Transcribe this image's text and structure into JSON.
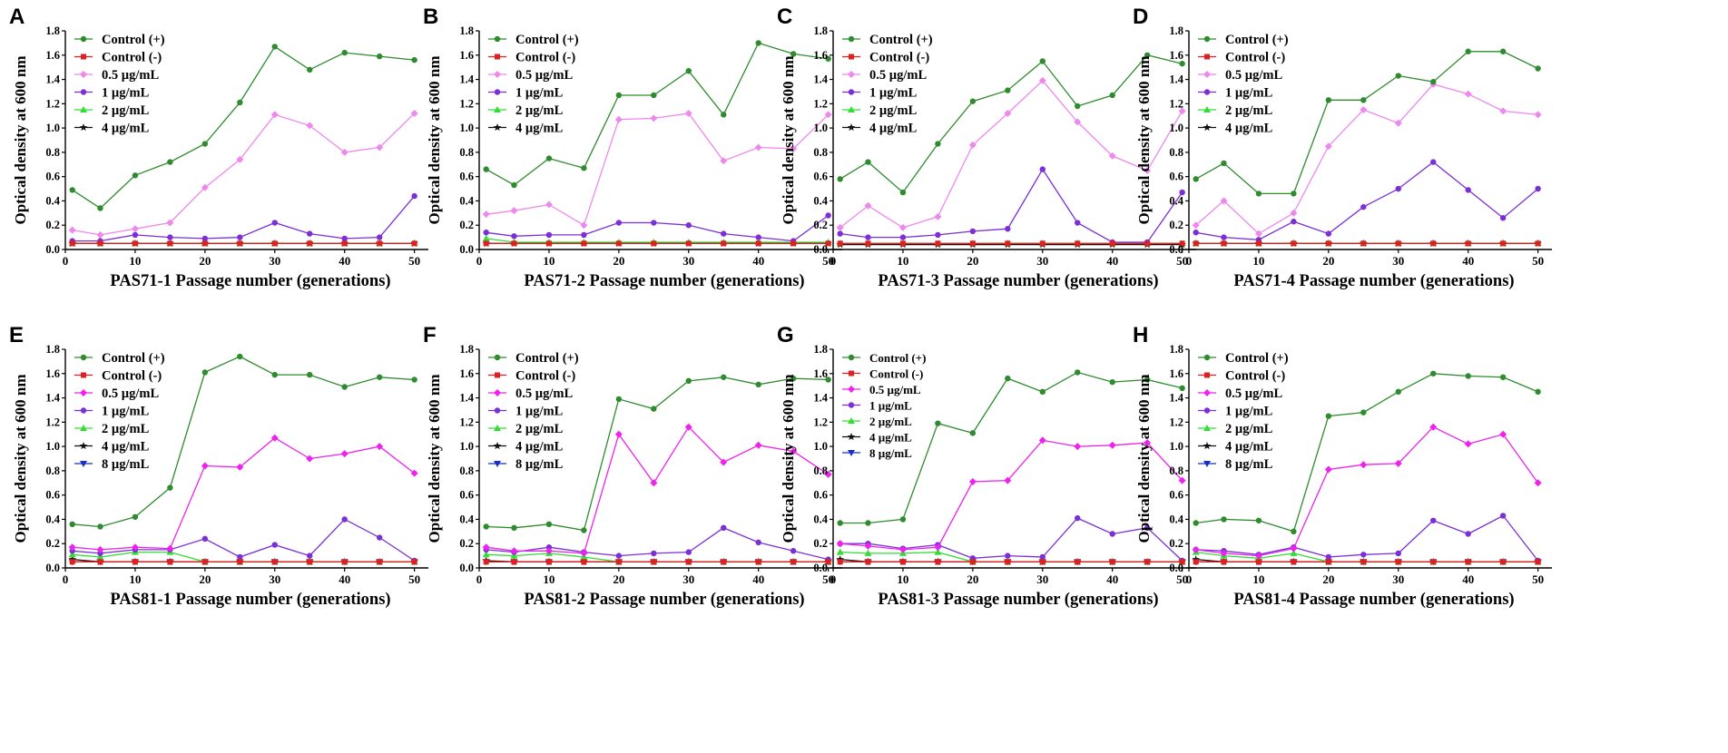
{
  "figure": {
    "x_values": [
      1,
      5,
      10,
      15,
      20,
      25,
      30,
      35,
      40,
      45,
      50
    ],
    "y_axis_label": "Optical density at 600 nm",
    "x_ticks": [
      0,
      10,
      20,
      30,
      40,
      50
    ],
    "y_ticks": [
      "0.0",
      "0.2",
      "0.4",
      "0.6",
      "0.8",
      "1.0",
      "1.2",
      "1.4",
      "1.6",
      "1.8"
    ],
    "series_colors": {
      "Control (+)": "#2e8b2e",
      "Control (-)": "#e02020",
      "0.5 µg/mL": "#ee88ee",
      "1 µg/mL": "#7b2fd6",
      "2 µg/mL": "#33dd33",
      "4 µg/mL": "#111111",
      "8 µg/mL": "#1a2fbf"
    },
    "series_colors_row2_half": "#ee22ee"
  },
  "chart_data": [
    {
      "type": "line",
      "panel": "A",
      "xlabel": "PAS71-1 Passage number (generations)",
      "ylabel": "Optical density at 600 nm",
      "xlim": [
        0,
        52
      ],
      "ylim": [
        0,
        1.8
      ],
      "x": [
        1,
        5,
        10,
        15,
        20,
        25,
        30,
        35,
        40,
        45,
        50
      ],
      "series": [
        {
          "name": "Control (+)",
          "values": [
            0.49,
            0.34,
            0.61,
            0.72,
            0.87,
            1.21,
            1.67,
            1.48,
            1.62,
            1.59,
            1.56
          ]
        },
        {
          "name": "Control (-)",
          "values": [
            0.05,
            0.05,
            0.05,
            0.05,
            0.05,
            0.05,
            0.05,
            0.05,
            0.05,
            0.05,
            0.05
          ]
        },
        {
          "name": "0.5 µg/mL",
          "values": [
            0.16,
            0.12,
            0.17,
            0.22,
            0.51,
            0.74,
            1.11,
            1.02,
            0.8,
            0.84,
            1.12
          ]
        },
        {
          "name": "1 µg/mL",
          "values": [
            0.07,
            0.07,
            0.12,
            0.1,
            0.09,
            0.1,
            0.22,
            0.13,
            0.09,
            0.1,
            0.44
          ]
        },
        {
          "name": "2 µg/mL",
          "values": [
            0.05,
            0.05,
            0.05,
            0.05,
            0.05,
            0.05,
            0.05,
            0.05,
            0.05,
            0.05,
            0.05
          ]
        },
        {
          "name": "4 µg/mL",
          "values": [
            0.05,
            0.05,
            0.05,
            0.05,
            0.05,
            0.05,
            0.05,
            0.05,
            0.05,
            0.05,
            0.05
          ]
        }
      ]
    },
    {
      "type": "line",
      "panel": "B",
      "xlabel": "PAS71-2 Passage number (generations)",
      "ylabel": "Optical density at 600 nm",
      "xlim": [
        0,
        52
      ],
      "ylim": [
        0,
        1.8
      ],
      "x": [
        1,
        5,
        10,
        15,
        20,
        25,
        30,
        35,
        40,
        45,
        50
      ],
      "series": [
        {
          "name": "Control (+)",
          "values": [
            0.66,
            0.53,
            0.75,
            0.67,
            1.27,
            1.27,
            1.47,
            1.11,
            1.7,
            1.61,
            1.57
          ]
        },
        {
          "name": "Control (-)",
          "values": [
            0.05,
            0.05,
            0.05,
            0.05,
            0.05,
            0.05,
            0.05,
            0.05,
            0.05,
            0.05,
            0.05
          ]
        },
        {
          "name": "0.5 µg/mL",
          "values": [
            0.29,
            0.32,
            0.37,
            0.2,
            1.07,
            1.08,
            1.12,
            0.73,
            0.84,
            0.83,
            1.11
          ]
        },
        {
          "name": "1 µg/mL",
          "values": [
            0.14,
            0.11,
            0.12,
            0.12,
            0.22,
            0.22,
            0.2,
            0.13,
            0.1,
            0.07,
            0.28
          ]
        },
        {
          "name": "2 µg/mL",
          "values": [
            0.09,
            0.06,
            0.06,
            0.06,
            0.06,
            0.06,
            0.06,
            0.06,
            0.06,
            0.06,
            0.06
          ]
        },
        {
          "name": "4 µg/mL",
          "values": [
            0.05,
            0.05,
            0.05,
            0.05,
            0.05,
            0.05,
            0.05,
            0.05,
            0.05,
            0.05,
            0.05
          ]
        }
      ]
    },
    {
      "type": "line",
      "panel": "C",
      "xlabel": "PAS71-3 Passage number (generations)",
      "ylabel": "Optical density at 600 nm",
      "xlim": [
        0,
        52
      ],
      "ylim": [
        0,
        1.8
      ],
      "x": [
        1,
        5,
        10,
        15,
        20,
        25,
        30,
        35,
        40,
        45,
        50
      ],
      "series": [
        {
          "name": "Control (+)",
          "values": [
            0.58,
            0.72,
            0.47,
            0.87,
            1.22,
            1.31,
            1.55,
            1.18,
            1.27,
            1.6,
            1.53
          ]
        },
        {
          "name": "Control (-)",
          "values": [
            0.05,
            0.05,
            0.05,
            0.05,
            0.05,
            0.05,
            0.05,
            0.05,
            0.05,
            0.05,
            0.05
          ]
        },
        {
          "name": "0.5 µg/mL",
          "values": [
            0.18,
            0.36,
            0.18,
            0.27,
            0.86,
            1.12,
            1.39,
            1.05,
            0.77,
            0.65,
            1.14
          ]
        },
        {
          "name": "1 µg/mL",
          "values": [
            0.13,
            0.1,
            0.1,
            0.12,
            0.15,
            0.17,
            0.66,
            0.22,
            0.06,
            0.06,
            0.47
          ]
        },
        {
          "name": "2 µg/mL",
          "values": [
            0.05,
            0.05,
            0.05,
            0.05,
            0.05,
            0.05,
            0.05,
            0.05,
            0.05,
            0.05,
            0.05
          ]
        },
        {
          "name": "4 µg/mL",
          "values": [
            0.04,
            0.04,
            0.04,
            0.04,
            0.04,
            0.04,
            0.04,
            0.04,
            0.04,
            0.04,
            0.04
          ]
        }
      ]
    },
    {
      "type": "line",
      "panel": "D",
      "xlabel": "PAS71-4 Passage number (generations)",
      "ylabel": "Optical density at 600 nm",
      "xlim": [
        0,
        52
      ],
      "ylim": [
        0,
        1.8
      ],
      "x": [
        1,
        5,
        10,
        15,
        20,
        25,
        30,
        35,
        40,
        45,
        50
      ],
      "series": [
        {
          "name": "Control (+)",
          "values": [
            0.58,
            0.71,
            0.46,
            0.46,
            1.23,
            1.23,
            1.43,
            1.38,
            1.63,
            1.63,
            1.49
          ]
        },
        {
          "name": "Control (-)",
          "values": [
            0.05,
            0.05,
            0.05,
            0.05,
            0.05,
            0.05,
            0.05,
            0.05,
            0.05,
            0.05,
            0.05
          ]
        },
        {
          "name": "0.5 µg/mL",
          "values": [
            0.2,
            0.4,
            0.13,
            0.3,
            0.85,
            1.15,
            1.04,
            1.36,
            1.28,
            1.14,
            1.11
          ]
        },
        {
          "name": "1 µg/mL",
          "values": [
            0.14,
            0.1,
            0.08,
            0.23,
            0.13,
            0.35,
            0.5,
            0.72,
            0.49,
            0.26,
            0.5
          ]
        },
        {
          "name": "2 µg/mL",
          "values": [
            0.05,
            0.05,
            0.05,
            0.05,
            0.05,
            0.05,
            0.05,
            0.05,
            0.05,
            0.05,
            0.05
          ]
        },
        {
          "name": "4 µg/mL",
          "values": [
            0.05,
            0.05,
            0.05,
            0.05,
            0.05,
            0.05,
            0.05,
            0.05,
            0.05,
            0.05,
            0.05
          ]
        }
      ]
    },
    {
      "type": "line",
      "panel": "E",
      "xlabel": "PAS81-1 Passage number (generations)",
      "ylabel": "Optical density at 600 nm",
      "xlim": [
        0,
        52
      ],
      "ylim": [
        0,
        1.8
      ],
      "x": [
        1,
        5,
        10,
        15,
        20,
        25,
        30,
        35,
        40,
        45,
        50
      ],
      "series": [
        {
          "name": "Control (+)",
          "values": [
            0.36,
            0.34,
            0.42,
            0.66,
            1.61,
            1.74,
            1.59,
            1.59,
            1.49,
            1.57,
            1.55
          ]
        },
        {
          "name": "Control (-)",
          "values": [
            0.05,
            0.05,
            0.05,
            0.05,
            0.05,
            0.05,
            0.05,
            0.05,
            0.05,
            0.05,
            0.05
          ]
        },
        {
          "name": "0.5 µg/mL",
          "values": [
            0.17,
            0.15,
            0.17,
            0.16,
            0.84,
            0.83,
            1.07,
            0.9,
            0.94,
            1.0,
            0.78
          ]
        },
        {
          "name": "1 µg/mL",
          "values": [
            0.14,
            0.12,
            0.15,
            0.15,
            0.24,
            0.09,
            0.19,
            0.1,
            0.4,
            0.25,
            0.06
          ]
        },
        {
          "name": "2 µg/mL",
          "values": [
            0.11,
            0.09,
            0.13,
            0.13,
            0.05,
            0.05,
            0.05,
            0.05,
            0.05,
            0.05,
            0.05
          ]
        },
        {
          "name": "4 µg/mL",
          "values": [
            0.07,
            0.05,
            0.05,
            0.05,
            0.05,
            0.05,
            0.05,
            0.05,
            0.05,
            0.05,
            0.05
          ]
        },
        {
          "name": "8 µg/mL",
          "values": [
            0.05,
            0.05,
            0.05,
            0.05,
            0.05,
            0.05,
            0.05,
            0.05,
            0.05,
            0.05,
            0.05
          ]
        }
      ]
    },
    {
      "type": "line",
      "panel": "F",
      "xlabel": "PAS81-2 Passage number (generations)",
      "ylabel": "Optical density at 600 nm",
      "xlim": [
        0,
        52
      ],
      "ylim": [
        0,
        1.8
      ],
      "x": [
        1,
        5,
        10,
        15,
        20,
        25,
        30,
        35,
        40,
        45,
        50
      ],
      "series": [
        {
          "name": "Control (+)",
          "values": [
            0.34,
            0.33,
            0.36,
            0.31,
            1.39,
            1.31,
            1.54,
            1.57,
            1.51,
            1.56,
            1.55
          ]
        },
        {
          "name": "Control (-)",
          "values": [
            0.05,
            0.05,
            0.05,
            0.05,
            0.05,
            0.05,
            0.05,
            0.05,
            0.05,
            0.05,
            0.05
          ]
        },
        {
          "name": "0.5 µg/mL",
          "values": [
            0.17,
            0.14,
            0.14,
            0.12,
            1.1,
            0.7,
            1.16,
            0.87,
            1.01,
            0.96,
            0.77
          ]
        },
        {
          "name": "1 µg/mL",
          "values": [
            0.15,
            0.13,
            0.17,
            0.13,
            0.1,
            0.12,
            0.13,
            0.33,
            0.21,
            0.14,
            0.07
          ]
        },
        {
          "name": "2 µg/mL",
          "values": [
            0.11,
            0.1,
            0.12,
            0.09,
            0.05,
            0.05,
            0.05,
            0.05,
            0.05,
            0.05,
            0.05
          ]
        },
        {
          "name": "4 µg/mL",
          "values": [
            0.06,
            0.05,
            0.05,
            0.05,
            0.05,
            0.05,
            0.05,
            0.05,
            0.05,
            0.05,
            0.05
          ]
        },
        {
          "name": "8 µg/mL",
          "values": [
            0.05,
            0.05,
            0.05,
            0.05,
            0.05,
            0.05,
            0.05,
            0.05,
            0.05,
            0.05,
            0.05
          ]
        }
      ]
    },
    {
      "type": "line",
      "panel": "G",
      "xlabel": "PAS81-3 Passage number (generations)",
      "ylabel": "Optical density at 600 nm",
      "xlim": [
        0,
        52
      ],
      "ylim": [
        0,
        1.8
      ],
      "x": [
        1,
        5,
        10,
        15,
        20,
        25,
        30,
        35,
        40,
        45,
        50
      ],
      "series": [
        {
          "name": "Control (+)",
          "values": [
            0.37,
            0.37,
            0.4,
            1.19,
            1.11,
            1.56,
            1.45,
            1.61,
            1.53,
            1.55,
            1.48
          ]
        },
        {
          "name": "Control (-)",
          "values": [
            0.05,
            0.05,
            0.05,
            0.05,
            0.05,
            0.05,
            0.05,
            0.05,
            0.05,
            0.05,
            0.05
          ]
        },
        {
          "name": "0.5 µg/mL",
          "values": [
            0.2,
            0.18,
            0.15,
            0.17,
            0.71,
            0.72,
            1.05,
            1.0,
            1.01,
            1.03,
            0.72
          ]
        },
        {
          "name": "1 µg/mL",
          "values": [
            0.2,
            0.2,
            0.16,
            0.19,
            0.08,
            0.1,
            0.09,
            0.41,
            0.28,
            0.33,
            0.06
          ]
        },
        {
          "name": "2 µg/mL",
          "values": [
            0.13,
            0.12,
            0.12,
            0.13,
            0.05,
            0.05,
            0.05,
            0.05,
            0.05,
            0.05,
            0.05
          ]
        },
        {
          "name": "4 µg/mL",
          "values": [
            0.07,
            0.05,
            0.05,
            0.05,
            0.05,
            0.05,
            0.05,
            0.05,
            0.05,
            0.05,
            0.05
          ]
        },
        {
          "name": "8 µg/mL",
          "values": [
            0.05,
            0.05,
            0.05,
            0.05,
            0.05,
            0.05,
            0.05,
            0.05,
            0.05,
            0.05,
            0.05
          ]
        }
      ]
    },
    {
      "type": "line",
      "panel": "H",
      "xlabel": "PAS81-4 Passage number (generations)",
      "ylabel": "Optical density at 600 nm",
      "xlim": [
        0,
        52
      ],
      "ylim": [
        0,
        1.8
      ],
      "x": [
        1,
        5,
        10,
        15,
        20,
        25,
        30,
        35,
        40,
        45,
        50
      ],
      "series": [
        {
          "name": "Control (+)",
          "values": [
            0.37,
            0.4,
            0.39,
            0.3,
            1.25,
            1.28,
            1.45,
            1.6,
            1.58,
            1.57,
            1.45
          ]
        },
        {
          "name": "Control (-)",
          "values": [
            0.05,
            0.05,
            0.05,
            0.05,
            0.05,
            0.05,
            0.05,
            0.05,
            0.05,
            0.05,
            0.05
          ]
        },
        {
          "name": "0.5 µg/mL",
          "values": [
            0.15,
            0.12,
            0.1,
            0.16,
            0.81,
            0.85,
            0.86,
            1.16,
            1.02,
            1.1,
            0.7
          ]
        },
        {
          "name": "1 µg/mL",
          "values": [
            0.15,
            0.14,
            0.11,
            0.17,
            0.09,
            0.11,
            0.12,
            0.39,
            0.28,
            0.43,
            0.06
          ]
        },
        {
          "name": "2 µg/mL",
          "values": [
            0.13,
            0.1,
            0.08,
            0.12,
            0.05,
            0.05,
            0.05,
            0.05,
            0.05,
            0.05,
            0.05
          ]
        },
        {
          "name": "4 µg/mL",
          "values": [
            0.07,
            0.05,
            0.05,
            0.05,
            0.05,
            0.05,
            0.05,
            0.05,
            0.05,
            0.05,
            0.05
          ]
        },
        {
          "name": "8 µg/mL",
          "values": [
            0.05,
            0.05,
            0.05,
            0.05,
            0.05,
            0.05,
            0.05,
            0.05,
            0.05,
            0.05,
            0.05
          ]
        }
      ]
    }
  ]
}
